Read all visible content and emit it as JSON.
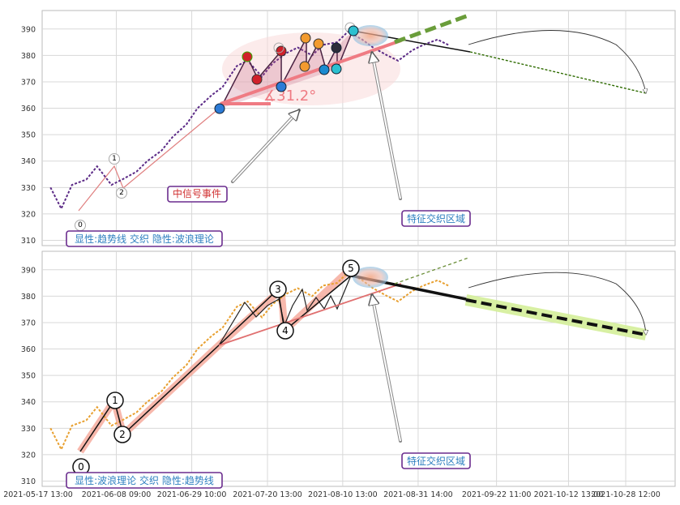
{
  "chart_data": [
    {
      "type": "line",
      "panel": "top",
      "ylim": [
        308,
        397
      ],
      "yticks": [
        310,
        320,
        330,
        340,
        350,
        360,
        370,
        380,
        390
      ],
      "grid": true,
      "wave_labels": [
        "0",
        "1",
        "2"
      ],
      "angle_label": "∡31.2°",
      "annotations": {
        "signal_event": "中信号事件",
        "feature_zone": "特征交织区域",
        "legend": "显性:趋势线 交织 隐性:波浪理论"
      },
      "series": [
        {
          "color": "#5b2a86",
          "x": [
            "2021-05-21",
            "2021-05-24",
            "2021-05-27",
            "2021-05-31",
            "2021-06-03",
            "2021-06-07",
            "2021-06-10",
            "2021-06-14",
            "2021-06-17",
            "2021-06-21",
            "2021-06-24",
            "2021-06-28",
            "2021-07-01",
            "2021-07-05",
            "2021-07-08",
            "2021-07-12",
            "2021-07-15",
            "2021-07-19",
            "2021-07-22",
            "2021-07-26",
            "2021-07-29",
            "2021-08-02",
            "2021-08-05",
            "2021-08-09",
            "2021-08-12",
            "2021-08-16",
            "2021-08-19",
            "2021-08-23",
            "2021-08-26",
            "2021-08-30",
            "2021-09-02",
            "2021-09-06",
            "2021-09-09"
          ],
          "y": [
            330,
            322,
            331,
            333,
            338,
            331,
            333,
            336,
            340,
            344,
            349,
            354,
            360,
            365,
            368,
            376,
            378,
            372,
            377,
            381,
            383,
            380,
            384,
            385,
            389,
            386,
            383,
            380,
            378,
            382,
            384,
            386,
            384
          ]
        }
      ],
      "forecast": {
        "x": [
          "2021-09-09",
          "2021-10-31"
        ],
        "y": [
          383,
          366
        ]
      }
    },
    {
      "type": "line",
      "panel": "bottom",
      "ylim": [
        308,
        397
      ],
      "yticks": [
        310,
        320,
        330,
        340,
        350,
        360,
        370,
        380,
        390
      ],
      "grid": true,
      "wave_labels": [
        "0",
        "1",
        "2",
        "3",
        "4",
        "5"
      ],
      "annotations": {
        "feature_zone": "特征交织区域",
        "legend": "显性:波浪理论 交织 隐性:趋势线"
      },
      "xticks": [
        "2021-05-17 13:00",
        "2021-06-08 09:00",
        "2021-06-29 10:00",
        "2021-07-20 13:00",
        "2021-08-10 13:00",
        "2021-08-31 14:00",
        "2021-09-22 11:00",
        "2021-10-12 13:00",
        "2021-10-28 12:00"
      ],
      "series": [
        {
          "color": "#e8a030",
          "x": [
            "2021-05-21",
            "2021-05-24",
            "2021-05-27",
            "2021-05-31",
            "2021-06-03",
            "2021-06-07",
            "2021-06-10",
            "2021-06-14",
            "2021-06-17",
            "2021-06-21",
            "2021-06-24",
            "2021-06-28",
            "2021-07-01",
            "2021-07-05",
            "2021-07-08",
            "2021-07-12",
            "2021-07-15",
            "2021-07-19",
            "2021-07-22",
            "2021-07-26",
            "2021-07-29",
            "2021-08-02",
            "2021-08-05",
            "2021-08-09",
            "2021-08-12",
            "2021-08-16",
            "2021-08-19",
            "2021-08-23",
            "2021-08-26",
            "2021-08-30",
            "2021-09-02",
            "2021-09-06",
            "2021-09-09"
          ],
          "y": [
            330,
            322,
            331,
            333,
            338,
            331,
            333,
            336,
            340,
            344,
            349,
            354,
            360,
            365,
            368,
            376,
            378,
            372,
            377,
            381,
            383,
            380,
            384,
            385,
            389,
            386,
            383,
            380,
            378,
            382,
            384,
            386,
            384
          ]
        }
      ],
      "forecast": {
        "x": [
          "2021-09-09",
          "2021-10-31"
        ],
        "y": [
          379,
          365
        ]
      }
    }
  ]
}
